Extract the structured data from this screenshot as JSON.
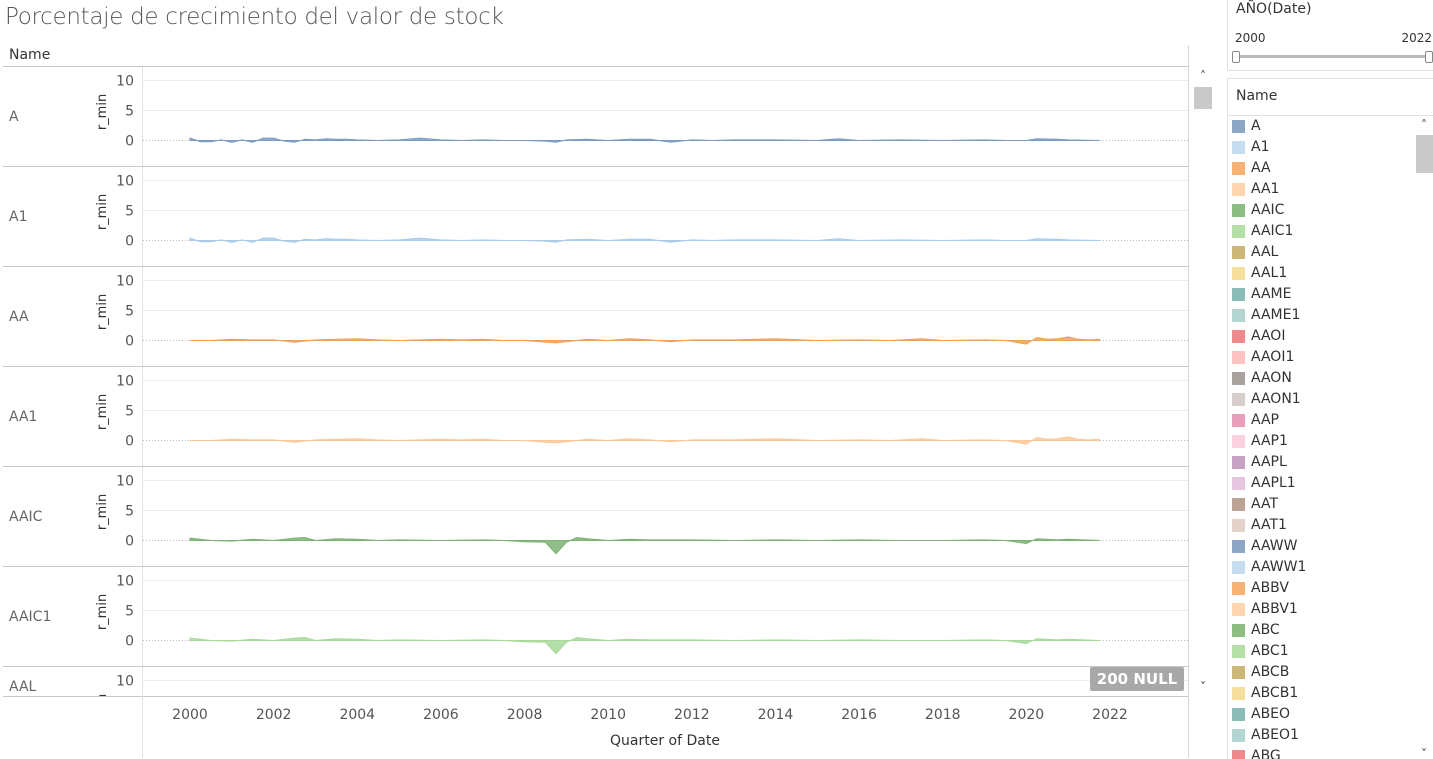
{
  "title": "Porcentaje de crecimiento del valor de stock",
  "name_header": "Name",
  "null_badge": "200 NULL",
  "filter": {
    "title": "AÑO(Date)",
    "min": "2000",
    "max": "2022"
  },
  "legend": {
    "title": "Name",
    "items": [
      {
        "label": "A",
        "color": "#8ca6c4"
      },
      {
        "label": "A1",
        "color": "#c6dcef"
      },
      {
        "label": "AA",
        "color": "#f5b272"
      },
      {
        "label": "AA1",
        "color": "#fdd6b0"
      },
      {
        "label": "AAIC",
        "color": "#8cbd82"
      },
      {
        "label": "AAIC1",
        "color": "#b4dfa6"
      },
      {
        "label": "AAL",
        "color": "#cbb777"
      },
      {
        "label": "AAL1",
        "color": "#f6de9c"
      },
      {
        "label": "AAME",
        "color": "#8bbcb8"
      },
      {
        "label": "AAME1",
        "color": "#b4d6d2"
      },
      {
        "label": "AAOI",
        "color": "#ee8a8e"
      },
      {
        "label": "AAOI1",
        "color": "#fdc2c2"
      },
      {
        "label": "AAON",
        "color": "#a9a29e"
      },
      {
        "label": "AAON1",
        "color": "#d6cfcb"
      },
      {
        "label": "AAP",
        "color": "#e89fbc"
      },
      {
        "label": "AAP1",
        "color": "#fbd1e0"
      },
      {
        "label": "AAPL",
        "color": "#c8a2c4"
      },
      {
        "label": "AAPL1",
        "color": "#e4c6de"
      },
      {
        "label": "AAT",
        "color": "#bba496"
      },
      {
        "label": "AAT1",
        "color": "#e3d3ca"
      },
      {
        "label": "AAWW",
        "color": "#8ca6c4"
      },
      {
        "label": "AAWW1",
        "color": "#c6dcef"
      },
      {
        "label": "ABBV",
        "color": "#f5b272"
      },
      {
        "label": "ABBV1",
        "color": "#fdd6b0"
      },
      {
        "label": "ABC",
        "color": "#8cbd82"
      },
      {
        "label": "ABC1",
        "color": "#b4dfa6"
      },
      {
        "label": "ABCB",
        "color": "#cbb777"
      },
      {
        "label": "ABCB1",
        "color": "#f6de9c"
      },
      {
        "label": "ABEO",
        "color": "#8bbcb8"
      },
      {
        "label": "ABEO1",
        "color": "#b4d6d2"
      },
      {
        "label": "ABG",
        "color": "#ee8a8e"
      }
    ]
  },
  "chart_data": {
    "type": "area",
    "title": "Porcentaje de crecimiento del valor de stock",
    "xlabel": "Quarter of Date",
    "ylabel": "r_min",
    "row_header": "Name",
    "x_ticks": [
      "2000",
      "2002",
      "2004",
      "2006",
      "2008",
      "2010",
      "2012",
      "2014",
      "2016",
      "2018",
      "2020",
      "2022"
    ],
    "xlim": [
      2000,
      2023
    ],
    "y_ticks": [
      "10",
      "5",
      "0"
    ],
    "ylim": [
      -3,
      11
    ],
    "series": [
      {
        "name": "A",
        "color": "#7b9cc2",
        "values": [
          [
            2000.0,
            0.4
          ],
          [
            2000.25,
            -0.2
          ],
          [
            2000.5,
            -0.2
          ],
          [
            2000.75,
            0.1
          ],
          [
            2001.0,
            -0.3
          ],
          [
            2001.25,
            0.1
          ],
          [
            2001.5,
            -0.3
          ],
          [
            2001.75,
            0.4
          ],
          [
            2002.0,
            0.4
          ],
          [
            2002.25,
            -0.1
          ],
          [
            2002.5,
            -0.3
          ],
          [
            2002.75,
            0.2
          ],
          [
            2003.0,
            0.1
          ],
          [
            2003.25,
            0.3
          ],
          [
            2003.5,
            0.2
          ],
          [
            2003.75,
            0.2
          ],
          [
            2004.0,
            0.1
          ],
          [
            2004.5,
            0.0
          ],
          [
            2005.0,
            0.1
          ],
          [
            2005.5,
            0.4
          ],
          [
            2006.0,
            0.1
          ],
          [
            2006.5,
            0.0
          ],
          [
            2007.0,
            0.1
          ],
          [
            2007.5,
            0.0
          ],
          [
            2008.0,
            0.0
          ],
          [
            2008.5,
            -0.1
          ],
          [
            2008.75,
            -0.3
          ],
          [
            2009.0,
            0.1
          ],
          [
            2009.5,
            0.2
          ],
          [
            2010.0,
            0.0
          ],
          [
            2010.5,
            0.2
          ],
          [
            2011.0,
            0.2
          ],
          [
            2011.5,
            -0.3
          ],
          [
            2012.0,
            0.1
          ],
          [
            2012.5,
            0.0
          ],
          [
            2013.0,
            0.1
          ],
          [
            2014.0,
            0.1
          ],
          [
            2015.0,
            0.0
          ],
          [
            2015.5,
            0.3
          ],
          [
            2016.0,
            0.0
          ],
          [
            2017.0,
            0.1
          ],
          [
            2018.0,
            0.0
          ],
          [
            2019.0,
            0.1
          ],
          [
            2019.5,
            0.0
          ],
          [
            2020.0,
            0.0
          ],
          [
            2020.25,
            0.3
          ],
          [
            2020.75,
            0.2
          ],
          [
            2021.0,
            0.1
          ],
          [
            2021.75,
            0.0
          ]
        ]
      },
      {
        "name": "A1",
        "color": "#a9cbe8",
        "values": [
          [
            2000.0,
            0.4
          ],
          [
            2000.25,
            -0.2
          ],
          [
            2000.5,
            -0.2
          ],
          [
            2000.75,
            0.1
          ],
          [
            2001.0,
            -0.3
          ],
          [
            2001.25,
            0.1
          ],
          [
            2001.5,
            -0.3
          ],
          [
            2001.75,
            0.4
          ],
          [
            2002.0,
            0.4
          ],
          [
            2002.25,
            -0.1
          ],
          [
            2002.5,
            -0.3
          ],
          [
            2002.75,
            0.2
          ],
          [
            2003.0,
            0.1
          ],
          [
            2003.25,
            0.3
          ],
          [
            2003.5,
            0.2
          ],
          [
            2003.75,
            0.2
          ],
          [
            2004.0,
            0.1
          ],
          [
            2004.5,
            0.0
          ],
          [
            2005.0,
            0.1
          ],
          [
            2005.5,
            0.4
          ],
          [
            2006.0,
            0.1
          ],
          [
            2006.5,
            0.0
          ],
          [
            2007.0,
            0.1
          ],
          [
            2007.5,
            0.0
          ],
          [
            2008.0,
            0.0
          ],
          [
            2008.5,
            -0.1
          ],
          [
            2008.75,
            -0.3
          ],
          [
            2009.0,
            0.1
          ],
          [
            2009.5,
            0.2
          ],
          [
            2010.0,
            0.0
          ],
          [
            2010.5,
            0.2
          ],
          [
            2011.0,
            0.2
          ],
          [
            2011.5,
            -0.3
          ],
          [
            2012.0,
            0.1
          ],
          [
            2012.5,
            0.0
          ],
          [
            2013.0,
            0.1
          ],
          [
            2014.0,
            0.1
          ],
          [
            2015.0,
            0.0
          ],
          [
            2015.5,
            0.3
          ],
          [
            2016.0,
            0.0
          ],
          [
            2017.0,
            0.1
          ],
          [
            2018.0,
            0.0
          ],
          [
            2019.0,
            0.1
          ],
          [
            2019.5,
            0.0
          ],
          [
            2020.0,
            0.0
          ],
          [
            2020.25,
            0.3
          ],
          [
            2020.75,
            0.2
          ],
          [
            2021.0,
            0.1
          ],
          [
            2021.75,
            0.0
          ]
        ]
      },
      {
        "name": "AA",
        "color": "#f0a15a",
        "values": [
          [
            2000.0,
            0.0
          ],
          [
            2000.5,
            0.0
          ],
          [
            2001.0,
            0.2
          ],
          [
            2001.5,
            0.1
          ],
          [
            2002.0,
            0.1
          ],
          [
            2002.5,
            -0.3
          ],
          [
            2003.0,
            0.1
          ],
          [
            2003.5,
            0.2
          ],
          [
            2004.0,
            0.3
          ],
          [
            2004.5,
            0.1
          ],
          [
            2005.0,
            0.0
          ],
          [
            2006.0,
            0.2
          ],
          [
            2006.5,
            0.1
          ],
          [
            2007.0,
            0.2
          ],
          [
            2007.5,
            0.0
          ],
          [
            2008.0,
            0.0
          ],
          [
            2008.5,
            -0.3
          ],
          [
            2008.75,
            -0.4
          ],
          [
            2009.0,
            -0.2
          ],
          [
            2009.5,
            0.2
          ],
          [
            2010.0,
            0.0
          ],
          [
            2010.5,
            0.3
          ],
          [
            2011.0,
            0.1
          ],
          [
            2011.5,
            -0.2
          ],
          [
            2012.0,
            0.1
          ],
          [
            2013.0,
            0.1
          ],
          [
            2014.0,
            0.3
          ],
          [
            2015.0,
            0.0
          ],
          [
            2016.0,
            0.1
          ],
          [
            2016.75,
            0.0
          ],
          [
            2017.5,
            0.3
          ],
          [
            2018.0,
            0.0
          ],
          [
            2019.0,
            0.1
          ],
          [
            2019.5,
            0.0
          ],
          [
            2020.0,
            -0.6
          ],
          [
            2020.25,
            0.5
          ],
          [
            2020.5,
            0.2
          ],
          [
            2020.75,
            0.3
          ],
          [
            2021.0,
            0.6
          ],
          [
            2021.25,
            0.2
          ],
          [
            2021.5,
            0.1
          ],
          [
            2021.75,
            0.2
          ]
        ]
      },
      {
        "name": "AA1",
        "color": "#fbc89a",
        "values": [
          [
            2000.0,
            0.0
          ],
          [
            2000.5,
            0.0
          ],
          [
            2001.0,
            0.2
          ],
          [
            2001.5,
            0.1
          ],
          [
            2002.0,
            0.1
          ],
          [
            2002.5,
            -0.3
          ],
          [
            2003.0,
            0.1
          ],
          [
            2003.5,
            0.2
          ],
          [
            2004.0,
            0.3
          ],
          [
            2004.5,
            0.1
          ],
          [
            2005.0,
            0.0
          ],
          [
            2006.0,
            0.2
          ],
          [
            2006.5,
            0.1
          ],
          [
            2007.0,
            0.2
          ],
          [
            2007.5,
            0.0
          ],
          [
            2008.0,
            0.0
          ],
          [
            2008.5,
            -0.3
          ],
          [
            2008.75,
            -0.4
          ],
          [
            2009.0,
            -0.2
          ],
          [
            2009.5,
            0.2
          ],
          [
            2010.0,
            0.0
          ],
          [
            2010.5,
            0.3
          ],
          [
            2011.0,
            0.1
          ],
          [
            2011.5,
            -0.2
          ],
          [
            2012.0,
            0.1
          ],
          [
            2013.0,
            0.1
          ],
          [
            2014.0,
            0.3
          ],
          [
            2015.0,
            0.0
          ],
          [
            2016.0,
            0.1
          ],
          [
            2016.75,
            0.0
          ],
          [
            2017.5,
            0.3
          ],
          [
            2018.0,
            0.0
          ],
          [
            2019.0,
            0.1
          ],
          [
            2019.5,
            0.0
          ],
          [
            2020.0,
            -0.6
          ],
          [
            2020.25,
            0.5
          ],
          [
            2020.5,
            0.2
          ],
          [
            2020.75,
            0.3
          ],
          [
            2021.0,
            0.6
          ],
          [
            2021.25,
            0.2
          ],
          [
            2021.5,
            0.1
          ],
          [
            2021.75,
            0.2
          ]
        ]
      },
      {
        "name": "AAIC",
        "color": "#7db274",
        "values": [
          [
            2000.0,
            0.4
          ],
          [
            2000.5,
            0.0
          ],
          [
            2001.0,
            -0.1
          ],
          [
            2001.5,
            0.2
          ],
          [
            2002.0,
            0.0
          ],
          [
            2002.5,
            0.4
          ],
          [
            2002.75,
            0.5
          ],
          [
            2003.0,
            0.0
          ],
          [
            2003.5,
            0.3
          ],
          [
            2004.0,
            0.2
          ],
          [
            2004.5,
            0.0
          ],
          [
            2005.0,
            0.1
          ],
          [
            2006.0,
            0.0
          ],
          [
            2007.0,
            0.1
          ],
          [
            2007.5,
            0.0
          ],
          [
            2008.0,
            -0.2
          ],
          [
            2008.5,
            -0.3
          ],
          [
            2008.75,
            -2.2
          ],
          [
            2009.0,
            -0.3
          ],
          [
            2009.25,
            0.5
          ],
          [
            2009.5,
            0.3
          ],
          [
            2010.0,
            0.0
          ],
          [
            2010.5,
            0.2
          ],
          [
            2011.0,
            0.1
          ],
          [
            2012.0,
            0.1
          ],
          [
            2013.0,
            0.0
          ],
          [
            2014.0,
            0.1
          ],
          [
            2015.0,
            0.0
          ],
          [
            2016.0,
            0.1
          ],
          [
            2017.0,
            0.0
          ],
          [
            2018.0,
            0.0
          ],
          [
            2019.0,
            0.1
          ],
          [
            2019.5,
            0.0
          ],
          [
            2020.0,
            -0.5
          ],
          [
            2020.25,
            0.3
          ],
          [
            2020.75,
            0.1
          ],
          [
            2021.0,
            0.2
          ],
          [
            2021.75,
            0.0
          ]
        ]
      },
      {
        "name": "AAIC1",
        "color": "#a8d99a",
        "values": [
          [
            2000.0,
            0.4
          ],
          [
            2000.5,
            0.0
          ],
          [
            2001.0,
            -0.1
          ],
          [
            2001.5,
            0.2
          ],
          [
            2002.0,
            0.0
          ],
          [
            2002.5,
            0.4
          ],
          [
            2002.75,
            0.5
          ],
          [
            2003.0,
            0.0
          ],
          [
            2003.5,
            0.3
          ],
          [
            2004.0,
            0.2
          ],
          [
            2004.5,
            0.0
          ],
          [
            2005.0,
            0.1
          ],
          [
            2006.0,
            0.0
          ],
          [
            2007.0,
            0.1
          ],
          [
            2007.5,
            0.0
          ],
          [
            2008.0,
            -0.2
          ],
          [
            2008.5,
            -0.3
          ],
          [
            2008.75,
            -2.2
          ],
          [
            2009.0,
            -0.3
          ],
          [
            2009.25,
            0.5
          ],
          [
            2009.5,
            0.3
          ],
          [
            2010.0,
            0.0
          ],
          [
            2010.5,
            0.2
          ],
          [
            2011.0,
            0.1
          ],
          [
            2012.0,
            0.1
          ],
          [
            2013.0,
            0.0
          ],
          [
            2014.0,
            0.1
          ],
          [
            2015.0,
            0.0
          ],
          [
            2016.0,
            0.1
          ],
          [
            2017.0,
            0.0
          ],
          [
            2018.0,
            0.0
          ],
          [
            2019.0,
            0.1
          ],
          [
            2019.5,
            0.0
          ],
          [
            2020.0,
            -0.5
          ],
          [
            2020.25,
            0.3
          ],
          [
            2020.75,
            0.1
          ],
          [
            2021.0,
            0.2
          ],
          [
            2021.75,
            0.0
          ]
        ]
      },
      {
        "name": "AAL",
        "color": "#cbb777",
        "values": []
      }
    ]
  }
}
